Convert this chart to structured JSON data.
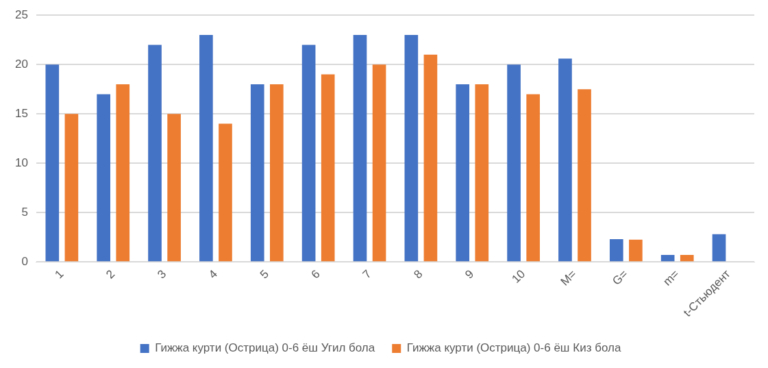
{
  "chart_data": {
    "type": "bar",
    "categories": [
      "1",
      "2",
      "3",
      "4",
      "5",
      "6",
      "7",
      "8",
      "9",
      "10",
      "M=",
      "G=",
      "m=",
      "t-Стьюдент"
    ],
    "series": [
      {
        "name": "Гижжа курти (Острица) 0-6 ёш Угил бола",
        "color": "#4472c4",
        "values": [
          20,
          17,
          22,
          23,
          18,
          22,
          23,
          23,
          18,
          20,
          20.6,
          2.3,
          0.7,
          2.8
        ]
      },
      {
        "name": "Гижжа курти (Острица) 0-6 ёш Киз бола",
        "color": "#ed7d31",
        "values": [
          15,
          18,
          15,
          14,
          18,
          19,
          20,
          21,
          18,
          17,
          17.5,
          2.25,
          0.7,
          null
        ]
      }
    ],
    "ylim": [
      0,
      25
    ],
    "yticks": [
      0,
      5,
      10,
      15,
      20,
      25
    ],
    "grid": "y",
    "legend": "bottom"
  }
}
